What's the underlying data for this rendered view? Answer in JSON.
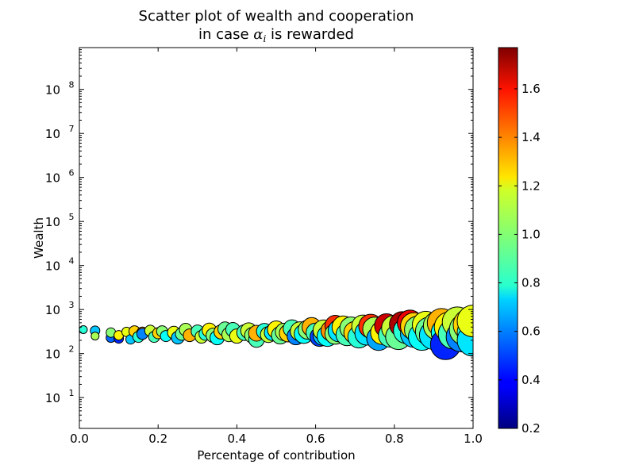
{
  "chart_data": {
    "type": "scatter",
    "title_line1": "Scatter plot of wealth and cooperation",
    "title_line2_pre": "in case ",
    "title_math": "α",
    "title_math_sub": "i",
    "title_line2_post": " is rewarded",
    "xlabel": "Percentage of contribution",
    "ylabel": "Wealth",
    "xlim": [
      0.0,
      1.0
    ],
    "ylim_log10": [
      0.3,
      8.95
    ],
    "y_scale": "log",
    "x_ticks": [
      "0.0",
      "0.2",
      "0.4",
      "0.6",
      "0.8",
      "1.0"
    ],
    "y_ticks_exponents": [
      "1",
      "2",
      "3",
      "4",
      "5",
      "6",
      "7",
      "8"
    ],
    "y_tick_base": "10",
    "colorbar": {
      "colormap": "jet",
      "range": [
        0.2,
        1.77
      ],
      "ticks": [
        "0.2",
        "0.4",
        "0.6",
        "0.8",
        "1.0",
        "1.2",
        "1.4",
        "1.6"
      ]
    },
    "points": [
      [
        0.01,
        350,
        0.85,
        5
      ],
      [
        0.04,
        330,
        0.7,
        6
      ],
      [
        0.04,
        250,
        1.05,
        5
      ],
      [
        0.08,
        230,
        0.55,
        6
      ],
      [
        0.08,
        300,
        1.0,
        6
      ],
      [
        0.1,
        220,
        0.45,
        6
      ],
      [
        0.1,
        260,
        1.2,
        6
      ],
      [
        0.12,
        310,
        1.15,
        6
      ],
      [
        0.13,
        210,
        0.7,
        6
      ],
      [
        0.14,
        320,
        1.25,
        7
      ],
      [
        0.15,
        240,
        0.85,
        7
      ],
      [
        0.16,
        300,
        1.35,
        7
      ],
      [
        0.16,
        280,
        0.6,
        7
      ],
      [
        0.18,
        330,
        1.1,
        7
      ],
      [
        0.19,
        240,
        0.9,
        7
      ],
      [
        0.2,
        290,
        1.25,
        7
      ],
      [
        0.21,
        320,
        1.0,
        7
      ],
      [
        0.22,
        250,
        0.8,
        7
      ],
      [
        0.24,
        300,
        1.15,
        8
      ],
      [
        0.25,
        230,
        0.7,
        8
      ],
      [
        0.26,
        280,
        0.95,
        8
      ],
      [
        0.27,
        350,
        1.05,
        8
      ],
      [
        0.28,
        260,
        1.3,
        8
      ],
      [
        0.3,
        320,
        0.9,
        8
      ],
      [
        0.31,
        240,
        1.1,
        8
      ],
      [
        0.32,
        280,
        0.85,
        8
      ],
      [
        0.33,
        340,
        1.2,
        9
      ],
      [
        0.34,
        260,
        1.0,
        9
      ],
      [
        0.35,
        230,
        0.8,
        9
      ],
      [
        0.36,
        310,
        1.25,
        9
      ],
      [
        0.37,
        360,
        0.95,
        9
      ],
      [
        0.38,
        270,
        1.05,
        9
      ],
      [
        0.39,
        350,
        0.9,
        9
      ],
      [
        0.4,
        250,
        1.15,
        9
      ],
      [
        0.42,
        300,
        0.9,
        10
      ],
      [
        0.43,
        330,
        1.1,
        10
      ],
      [
        0.44,
        260,
        1.0,
        10
      ],
      [
        0.45,
        210,
        0.9,
        10
      ],
      [
        0.45,
        290,
        1.3,
        10
      ],
      [
        0.47,
        320,
        0.85,
        10
      ],
      [
        0.48,
        270,
        1.1,
        10
      ],
      [
        0.49,
        300,
        0.75,
        10
      ],
      [
        0.5,
        350,
        1.2,
        11
      ],
      [
        0.51,
        260,
        0.95,
        11
      ],
      [
        0.52,
        310,
        1.05,
        11
      ],
      [
        0.53,
        290,
        1.25,
        11
      ],
      [
        0.54,
        370,
        0.9,
        11
      ],
      [
        0.55,
        250,
        0.6,
        11
      ],
      [
        0.56,
        320,
        1.1,
        12
      ],
      [
        0.57,
        280,
        0.8,
        12
      ],
      [
        0.58,
        350,
        1.0,
        12
      ],
      [
        0.59,
        400,
        1.3,
        12
      ],
      [
        0.6,
        300,
        0.9,
        12
      ],
      [
        0.61,
        240,
        0.5,
        12
      ],
      [
        0.62,
        260,
        0.7,
        13
      ],
      [
        0.62,
        340,
        1.1,
        13
      ],
      [
        0.63,
        250,
        0.8,
        13
      ],
      [
        0.64,
        330,
        1.35,
        13
      ],
      [
        0.65,
        430,
        1.5,
        13
      ],
      [
        0.65,
        280,
        1.0,
        13
      ],
      [
        0.66,
        330,
        0.75,
        14
      ],
      [
        0.67,
        400,
        1.2,
        14
      ],
      [
        0.68,
        270,
        0.9,
        14
      ],
      [
        0.69,
        380,
        1.0,
        14
      ],
      [
        0.7,
        300,
        1.25,
        14
      ],
      [
        0.71,
        240,
        0.85,
        14
      ],
      [
        0.72,
        420,
        1.1,
        14
      ],
      [
        0.73,
        290,
        0.75,
        15
      ],
      [
        0.74,
        420,
        1.5,
        15
      ],
      [
        0.75,
        360,
        1.05,
        15
      ],
      [
        0.76,
        220,
        0.65,
        15
      ],
      [
        0.77,
        300,
        1.2,
        15
      ],
      [
        0.78,
        430,
        1.65,
        15
      ],
      [
        0.79,
        260,
        0.9,
        15
      ],
      [
        0.8,
        380,
        1.1,
        16
      ],
      [
        0.81,
        240,
        0.95,
        16
      ],
      [
        0.82,
        460,
        1.7,
        16
      ],
      [
        0.83,
        330,
        0.85,
        16
      ],
      [
        0.84,
        500,
        1.6,
        16
      ],
      [
        0.85,
        280,
        0.7,
        17
      ],
      [
        0.85,
        420,
        1.25,
        17
      ],
      [
        0.86,
        350,
        1.0,
        17
      ],
      [
        0.87,
        240,
        0.8,
        17
      ],
      [
        0.88,
        450,
        1.15,
        17
      ],
      [
        0.89,
        320,
        0.95,
        18
      ],
      [
        0.9,
        260,
        0.75,
        18
      ],
      [
        0.91,
        430,
        1.05,
        18
      ],
      [
        0.92,
        500,
        1.3,
        18
      ],
      [
        0.93,
        300,
        0.8,
        18
      ],
      [
        0.93,
        160,
        0.45,
        19
      ],
      [
        0.94,
        400,
        1.2,
        19
      ],
      [
        0.95,
        280,
        0.9,
        19
      ],
      [
        0.96,
        520,
        1.1,
        19
      ],
      [
        0.97,
        240,
        0.6,
        19
      ],
      [
        0.98,
        350,
        1.0,
        20
      ],
      [
        0.99,
        450,
        1.25,
        20
      ],
      [
        1.0,
        300,
        0.85,
        20
      ],
      [
        1.0,
        200,
        0.75,
        20
      ],
      [
        1.0,
        550,
        1.15,
        20
      ]
    ]
  }
}
